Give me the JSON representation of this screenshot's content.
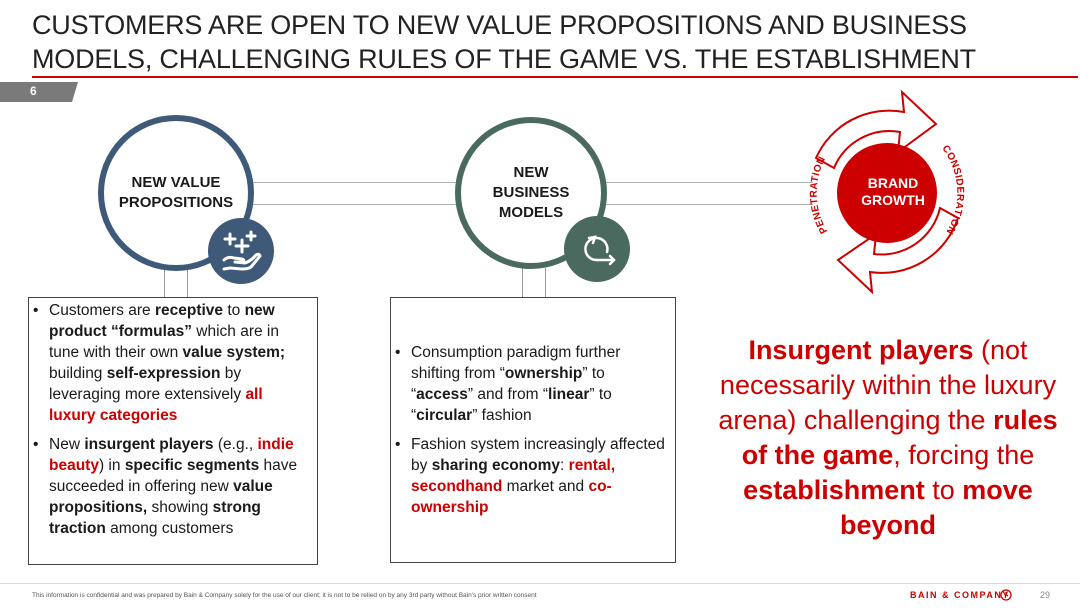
{
  "title": {
    "line1": "CUSTOMERS ARE OPEN TO NEW VALUE PROPOSITIONS AND BUSINESS",
    "line2": "MODELS, CHALLENGING RULES OF THE GAME VS. THE ESTABLISHMENT"
  },
  "section_number": "6",
  "circles": {
    "value": {
      "line1": "NEW VALUE",
      "line2": "PROPOSITIONS",
      "icon": "hand-sparkles-icon"
    },
    "business": {
      "line1": "NEW",
      "line2": "BUSINESS",
      "line3": "MODELS",
      "icon": "loop-arrow-icon"
    },
    "growth": {
      "line1": "BRAND",
      "line2": "GROWTH",
      "left_arc": "PENETRATION",
      "right_arc": "CONSIDERATION"
    }
  },
  "box1": {
    "b1": {
      "p1": "Customers are ",
      "p2": "receptive",
      "p3": " to ",
      "p4": "new product “formulas”",
      "p5": " which are in tune with their own ",
      "p6": "value system;",
      "p7": " building ",
      "p8": "self-expression",
      "p9": " by leveraging more extensively ",
      "p10": "all luxury categories"
    },
    "b2": {
      "p1": "New ",
      "p2": "insurgent players",
      "p3": " (e.g., ",
      "p4": "indie beauty",
      "p5": ") in ",
      "p6": "specific segments",
      "p7": " have succeeded in offering new ",
      "p8": "value propositions,",
      "p9": " showing ",
      "p10": "strong traction",
      "p11": " among customers"
    }
  },
  "box2": {
    "b1": {
      "p1": "Consumption paradigm further shifting from “",
      "p2": "ownership",
      "p3": "” to “",
      "p4": "access",
      "p5": "” and from “",
      "p6": "linear",
      "p7": "” to “",
      "p8": "circular",
      "p9": "” fashion"
    },
    "b2": {
      "p1": "Fashion system increasingly affected by ",
      "p2": "sharing economy",
      "p3": ": ",
      "p4": "rental",
      "p5": ", ",
      "p6": "secondhand",
      "p7": " market and ",
      "p8": "co-ownership"
    }
  },
  "callout": {
    "p1": "Insurgent players",
    "p2": " (not necessarily within the luxury arena) challenging the ",
    "p3": "rules of the game",
    "p4": ", forcing the ",
    "p5": "establishment",
    "p6": " to ",
    "p7": "move beyond"
  },
  "footer": {
    "note": "This information is confidential and was prepared by Bain & Company solely for the use of our client; it is not to be relied on by any 3rd party without Bain's prior written consent",
    "logo": "BAIN & COMPANY",
    "page": "29"
  },
  "colors": {
    "accent_red": "#cc0000",
    "navy": "#3f5a78",
    "teal": "#4b6a5f"
  }
}
